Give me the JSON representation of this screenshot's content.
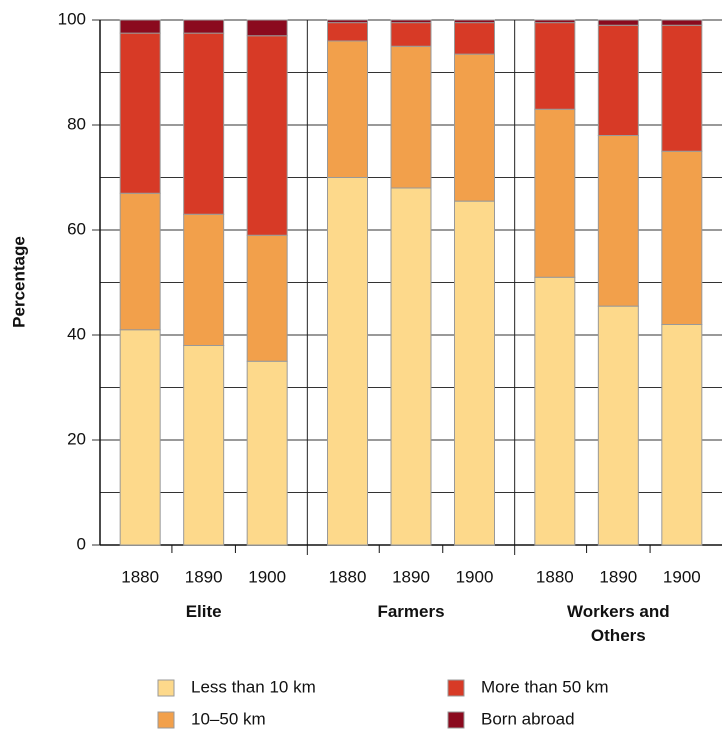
{
  "chart_data": {
    "type": "stacked-bar",
    "y_label": "Percentage",
    "groups": [
      "Elite",
      "Farmers",
      "Workers and Others"
    ],
    "categories": [
      "1880",
      "1890",
      "1900",
      "1880",
      "1890",
      "1900",
      "1880",
      "1890",
      "1900"
    ],
    "series": [
      {
        "name": "Less than 10 km",
        "color": "#fdd98b",
        "values": [
          41,
          38,
          35,
          70,
          68,
          65.5,
          51,
          45.5,
          42
        ]
      },
      {
        "name": "10–50 km",
        "color": "#f2a04b",
        "values": [
          26,
          25,
          24,
          26,
          27,
          28,
          32,
          32.5,
          33
        ]
      },
      {
        "name": "More than 50 km",
        "color": "#d73a26",
        "values": [
          30.5,
          34.5,
          38,
          3.5,
          4.5,
          6,
          16.5,
          21,
          24
        ]
      },
      {
        "name": "Born abroad",
        "color": "#8b0a1e",
        "values": [
          2.5,
          2.5,
          3,
          0.5,
          0.5,
          0.5,
          0.5,
          1,
          1
        ]
      }
    ],
    "ylim": [
      0,
      100
    ],
    "yticks": [
      0,
      20,
      40,
      60,
      80,
      100
    ],
    "minor_yticks": [
      10,
      30,
      50,
      70,
      90
    ],
    "grid": true
  }
}
